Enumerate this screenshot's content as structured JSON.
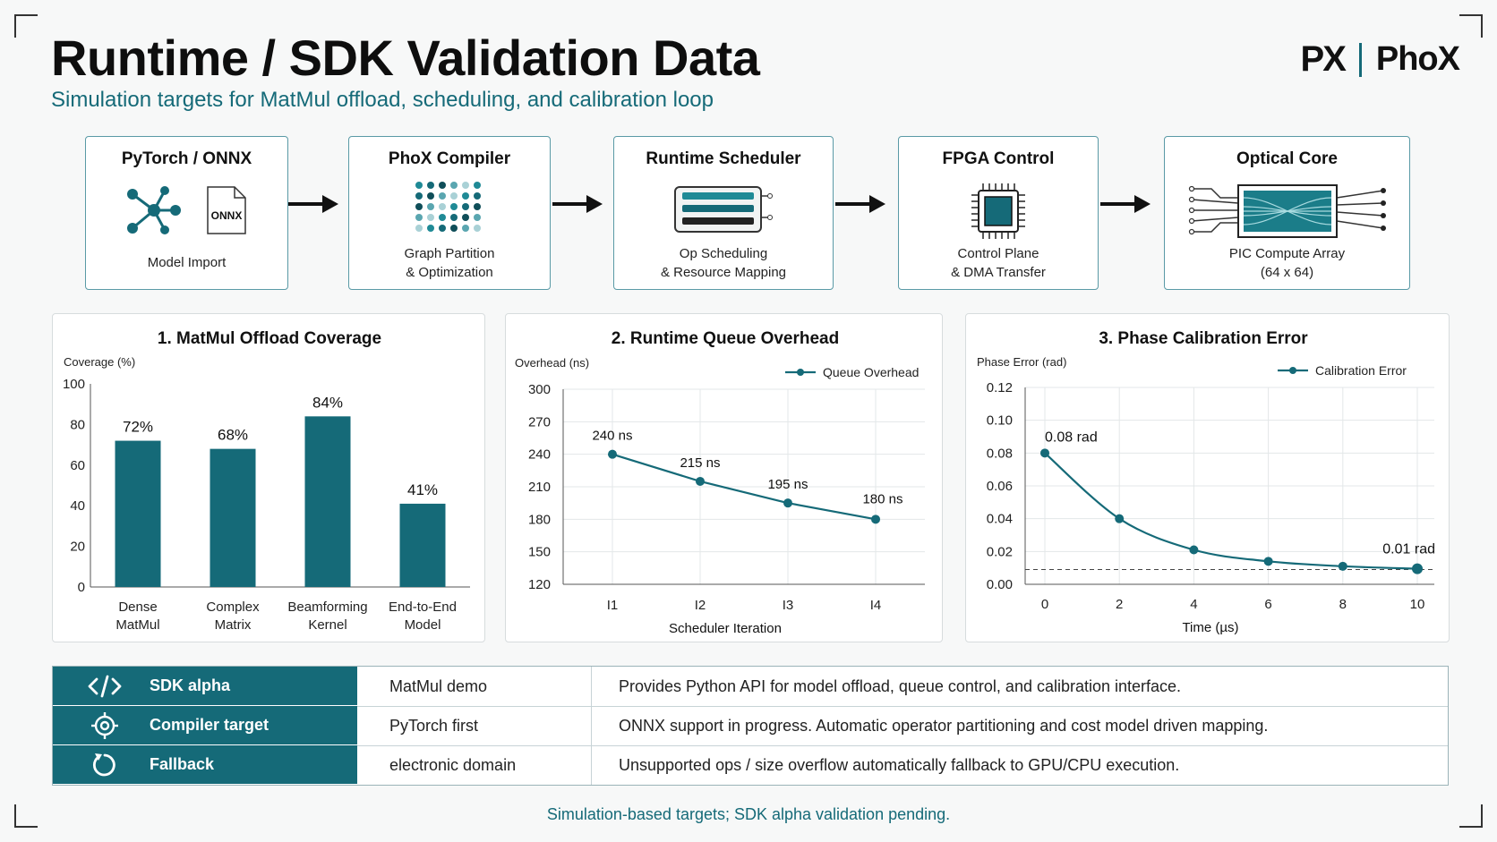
{
  "header": {
    "title": "Runtime / SDK Validation Data",
    "subtitle": "Simulation targets for MatMul offload, scheduling, and calibration loop",
    "logo_mark": "PX",
    "logo_text": "PhoX"
  },
  "pipeline": [
    {
      "title": "PyTorch / ONNX",
      "line1": "Model Import",
      "line2": "",
      "icon": "graph-onnx-icon",
      "badge": "ONNX"
    },
    {
      "title": "PhoX Compiler",
      "line1": "Graph Partition",
      "line2": "& Optimization",
      "icon": "dot-grid-icon"
    },
    {
      "title": "Runtime Scheduler",
      "line1": "Op Scheduling",
      "line2": "& Resource Mapping",
      "icon": "queue-icon"
    },
    {
      "title": "FPGA Control",
      "line1": "Control Plane",
      "line2": "& DMA Transfer",
      "icon": "chip-icon"
    },
    {
      "title": "Optical Core",
      "line1": "PIC Compute Array",
      "line2": "(64 x 64)",
      "icon": "optical-array-icon"
    }
  ],
  "colors": {
    "accent": "#156a78",
    "grid": "#e3e7e8",
    "axis": "#555555"
  },
  "chart_data": [
    {
      "type": "bar",
      "title": "1. MatMul Offload Coverage",
      "ylabel": "Coverage (%)",
      "categories": [
        [
          "Dense",
          "MatMul"
        ],
        [
          "Complex",
          "Matrix"
        ],
        [
          "Beamforming",
          "Kernel"
        ],
        [
          "End-to-End",
          "Model"
        ]
      ],
      "values": [
        72,
        68,
        84,
        41
      ],
      "data_labels": [
        "72%",
        "68%",
        "84%",
        "41%"
      ],
      "ylim": [
        0,
        100
      ],
      "yticks": [
        0,
        20,
        40,
        60,
        80,
        100
      ],
      "grid": false
    },
    {
      "type": "line",
      "title": "2. Runtime Queue Overhead",
      "ylabel": "Overhead (ns)",
      "xlabel": "Scheduler Iteration",
      "categories": [
        "I1",
        "I2",
        "I3",
        "I4"
      ],
      "series": [
        {
          "name": "Queue Overhead",
          "values": [
            240,
            215,
            195,
            180
          ]
        }
      ],
      "data_labels": [
        "240 ns",
        "215 ns",
        "195 ns",
        "180 ns"
      ],
      "ylim": [
        120,
        300
      ],
      "yticks": [
        120,
        150,
        180,
        210,
        240,
        270,
        300
      ],
      "legend": "top-right",
      "grid": true
    },
    {
      "type": "line",
      "title": "3.  Phase Calibration Error",
      "ylabel": "Phase Error (rad)",
      "xlabel": "Time (µs)",
      "x": [
        0,
        2,
        4,
        6,
        8,
        10
      ],
      "series": [
        {
          "name": "Calibration Error",
          "values": [
            0.08,
            0.04,
            0.021,
            0.014,
            0.011,
            0.0095
          ]
        }
      ],
      "data_labels": [
        "0.08 rad",
        "0.01 rad"
      ],
      "threshold": 0.009,
      "xlim": [
        0,
        10
      ],
      "xticks": [
        0,
        2,
        4,
        6,
        8,
        10
      ],
      "ylim": [
        0,
        0.12
      ],
      "yticks": [
        "0.00",
        "0.02",
        "0.04",
        "0.06",
        "0.08",
        "0.10",
        "0.12"
      ],
      "legend": "top-right",
      "grid": true
    }
  ],
  "table": {
    "rows": [
      {
        "icon": "code-icon",
        "label": "SDK alpha",
        "value": "MatMul demo",
        "desc": "Provides Python API for model offload, queue control, and calibration interface."
      },
      {
        "icon": "target-icon",
        "label": "Compiler target",
        "value": "PyTorch first",
        "desc": "ONNX support in progress. Automatic operator partitioning and cost model driven mapping."
      },
      {
        "icon": "refresh-icon",
        "label": "Fallback",
        "value": "electronic domain",
        "desc": "Unsupported ops / size overflow automatically fallback to GPU/CPU execution."
      }
    ]
  },
  "footnote": "Simulation-based targets; SDK alpha validation pending."
}
